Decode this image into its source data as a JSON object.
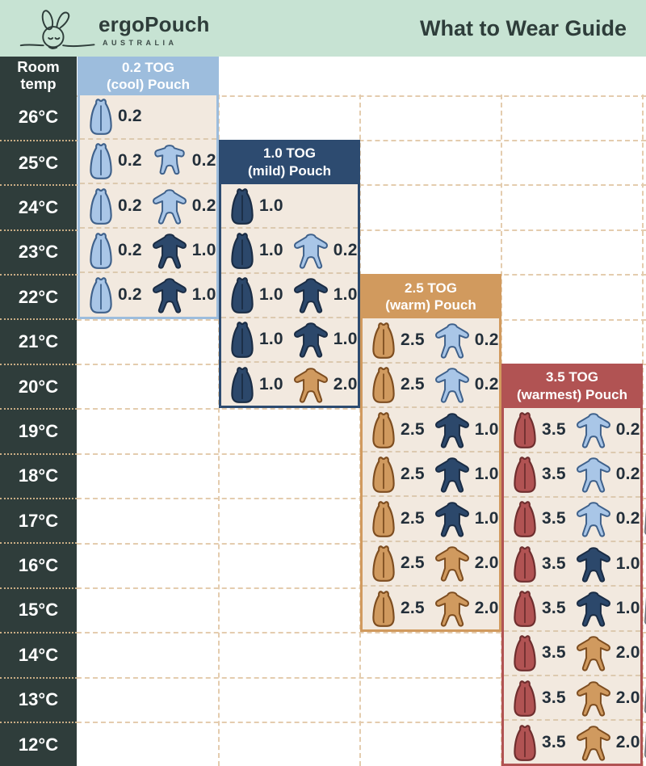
{
  "header": {
    "brand": "ergoPouch",
    "brand_sub": "AUSTRALIA",
    "title": "What to Wear Guide"
  },
  "temp_column": {
    "header": "Room temp",
    "temps": [
      "26°C",
      "25°C",
      "24°C",
      "23°C",
      "22°C",
      "21°C",
      "20°C",
      "19°C",
      "18°C",
      "17°C",
      "16°C",
      "15°C",
      "14°C",
      "13°C",
      "12°C"
    ]
  },
  "panels": [
    {
      "id": "tog-0-2",
      "line1": "0.2 TOG",
      "line2": "(cool) Pouch",
      "color": "#9dbddd",
      "pouch_color": "light_blue",
      "rows": [
        {
          "temp": "26°C",
          "pouch_tog": "0.2",
          "suit_tog": null,
          "suit_color": null,
          "suit_style": null,
          "singlet": false
        },
        {
          "temp": "25°C",
          "pouch_tog": "0.2",
          "suit_tog": "0.2",
          "suit_color": "light_blue",
          "suit_style": "short",
          "singlet": false
        },
        {
          "temp": "24°C",
          "pouch_tog": "0.2",
          "suit_tog": "0.2",
          "suit_color": "light_blue",
          "suit_style": "long",
          "singlet": false
        },
        {
          "temp": "23°C",
          "pouch_tog": "0.2",
          "suit_tog": "1.0",
          "suit_color": "navy",
          "suit_style": "long",
          "singlet": false
        },
        {
          "temp": "22°C",
          "pouch_tog": "0.2",
          "suit_tog": "1.0",
          "suit_color": "navy",
          "suit_style": "long",
          "singlet": true
        }
      ]
    },
    {
      "id": "tog-1-0",
      "line1": "1.0 TOG",
      "line2": "(mild) Pouch",
      "color": "#2d4b70",
      "pouch_color": "navy",
      "rows": [
        {
          "temp": "24°C",
          "pouch_tog": "1.0",
          "suit_tog": null,
          "suit_color": null,
          "suit_style": null,
          "singlet": false
        },
        {
          "temp": "23°C",
          "pouch_tog": "1.0",
          "suit_tog": "0.2",
          "suit_color": "light_blue",
          "suit_style": "long",
          "singlet": false
        },
        {
          "temp": "22°C",
          "pouch_tog": "1.0",
          "suit_tog": "1.0",
          "suit_color": "navy",
          "suit_style": "long",
          "singlet": false
        },
        {
          "temp": "21°C",
          "pouch_tog": "1.0",
          "suit_tog": "1.0",
          "suit_color": "navy",
          "suit_style": "long",
          "singlet": true
        },
        {
          "temp": "20°C",
          "pouch_tog": "1.0",
          "suit_tog": "2.0",
          "suit_color": "camel",
          "suit_style": "long",
          "singlet": false
        }
      ]
    },
    {
      "id": "tog-2-5",
      "line1": "2.5 TOG",
      "line2": "(warm) Pouch",
      "color": "#d19a5e",
      "pouch_color": "camel",
      "rows": [
        {
          "temp": "21°C",
          "pouch_tog": "2.5",
          "suit_tog": "0.2",
          "suit_color": "light_blue",
          "suit_style": "long",
          "singlet": false
        },
        {
          "temp": "20°C",
          "pouch_tog": "2.5",
          "suit_tog": "0.2",
          "suit_color": "light_blue",
          "suit_style": "long",
          "singlet": true
        },
        {
          "temp": "19°C",
          "pouch_tog": "2.5",
          "suit_tog": "1.0",
          "suit_color": "navy",
          "suit_style": "long",
          "singlet": false
        },
        {
          "temp": "18°C",
          "pouch_tog": "2.5",
          "suit_tog": "1.0",
          "suit_color": "navy",
          "suit_style": "long",
          "singlet": true
        },
        {
          "temp": "17°C",
          "pouch_tog": "2.5",
          "suit_tog": "1.0",
          "suit_color": "navy",
          "suit_style": "long",
          "singlet": true
        },
        {
          "temp": "16°C",
          "pouch_tog": "2.5",
          "suit_tog": "2.0",
          "suit_color": "camel",
          "suit_style": "long",
          "singlet": false
        },
        {
          "temp": "15°C",
          "pouch_tog": "2.5",
          "suit_tog": "2.0",
          "suit_color": "camel",
          "suit_style": "long",
          "singlet": true
        }
      ]
    },
    {
      "id": "tog-3-5",
      "line1": "3.5 TOG",
      "line2": "(warmest) Pouch",
      "color": "#b15353",
      "pouch_color": "red",
      "rows": [
        {
          "temp": "19°C",
          "pouch_tog": "3.5",
          "suit_tog": "0.2",
          "suit_color": "light_blue",
          "suit_style": "long",
          "singlet": false
        },
        {
          "temp": "18°C",
          "pouch_tog": "3.5",
          "suit_tog": "0.2",
          "suit_color": "light_blue",
          "suit_style": "long",
          "singlet": false
        },
        {
          "temp": "17°C",
          "pouch_tog": "3.5",
          "suit_tog": "0.2",
          "suit_color": "light_blue",
          "suit_style": "long",
          "singlet": true
        },
        {
          "temp": "16°C",
          "pouch_tog": "3.5",
          "suit_tog": "1.0",
          "suit_color": "navy",
          "suit_style": "long",
          "singlet": false
        },
        {
          "temp": "15°C",
          "pouch_tog": "3.5",
          "suit_tog": "1.0",
          "suit_color": "navy",
          "suit_style": "long",
          "singlet": true
        },
        {
          "temp": "14°C",
          "pouch_tog": "3.5",
          "suit_tog": "2.0",
          "suit_color": "camel",
          "suit_style": "long",
          "singlet": false
        },
        {
          "temp": "13°C",
          "pouch_tog": "3.5",
          "suit_tog": "2.0",
          "suit_color": "camel",
          "suit_style": "long",
          "singlet": true
        },
        {
          "temp": "12°C",
          "pouch_tog": "3.5",
          "suit_tog": "2.0",
          "suit_color": "camel",
          "suit_style": "long",
          "singlet": true
        }
      ]
    }
  ],
  "icons": {
    "pouch": "sleeping-bag-pouch-icon",
    "suit_long": "long-sleeve-sleepsuit-icon",
    "suit_short": "short-sleeve-romper-icon",
    "singlet": "singlet-icon",
    "bunny": "ergopouch-bunny-logo-icon"
  },
  "colors": {
    "mint": "#c7e3d3",
    "dark_teal": "#2e3d3a",
    "temp_col_bg": "#2f3d3b",
    "beige": "#f2e9df",
    "light_blue": "#9dbddd",
    "light_blue_icon": "#a9c6e7",
    "light_blue_outline": "#3f618b",
    "navy": "#2d4b70",
    "navy_icon": "#2c486b",
    "navy_outline": "#1a2c44",
    "camel": "#d19a5e",
    "camel_icon": "#d09a5f",
    "camel_outline": "#7d4d20",
    "red": "#b15353",
    "red_icon": "#b15353",
    "red_outline": "#6e2e2e",
    "singlet_outline": "#70757a",
    "number_text": "#232f3a",
    "dash_on_white": "#e4ccae",
    "dash_on_beige": "#dcc9af",
    "dot_on_dark": "#c9ad85"
  },
  "chart_data": {
    "type": "table",
    "title": "What to Wear Guide",
    "row_axis": "Room temp (°C)",
    "columns": [
      "0.2 TOG (cool) Pouch",
      "1.0 TOG (mild) Pouch",
      "2.5 TOG (warm) Pouch",
      "3.5 TOG (warmest) Pouch"
    ],
    "rows": [
      {
        "temp_c": 26,
        "cool": "0.2 pouch"
      },
      {
        "temp_c": 25,
        "cool": "0.2 pouch + 0.2 romper"
      },
      {
        "temp_c": 24,
        "cool": "0.2 pouch + 0.2 suit",
        "mild": "1.0 pouch"
      },
      {
        "temp_c": 23,
        "cool": "0.2 pouch + 1.0 suit",
        "mild": "1.0 pouch + 0.2 suit"
      },
      {
        "temp_c": 22,
        "cool": "0.2 pouch + 1.0 suit + singlet",
        "mild": "1.0 pouch + 1.0 suit"
      },
      {
        "temp_c": 21,
        "mild": "1.0 pouch + 1.0 suit + singlet",
        "warm": "2.5 pouch + 0.2 suit"
      },
      {
        "temp_c": 20,
        "mild": "1.0 pouch + 2.0 suit",
        "warm": "2.5 pouch + 0.2 suit + singlet"
      },
      {
        "temp_c": 19,
        "warm": "2.5 pouch + 1.0 suit",
        "warmest": "3.5 pouch + 0.2 suit"
      },
      {
        "temp_c": 18,
        "warm": "2.5 pouch + 1.0 suit + singlet",
        "warmest": "3.5 pouch + 0.2 suit"
      },
      {
        "temp_c": 17,
        "warm": "2.5 pouch + 1.0 suit + singlet",
        "warmest": "3.5 pouch + 0.2 suit + singlet"
      },
      {
        "temp_c": 16,
        "warm": "2.5 pouch + 2.0 suit",
        "warmest": "3.5 pouch + 1.0 suit"
      },
      {
        "temp_c": 15,
        "warm": "2.5 pouch + 2.0 suit + singlet",
        "warmest": "3.5 pouch + 1.0 suit + singlet"
      },
      {
        "temp_c": 14,
        "warmest": "3.5 pouch + 2.0 suit"
      },
      {
        "temp_c": 13,
        "warmest": "3.5 pouch + 2.0 suit + singlet"
      },
      {
        "temp_c": 12,
        "warmest": "3.5 pouch + 2.0 suit + singlet"
      }
    ]
  }
}
